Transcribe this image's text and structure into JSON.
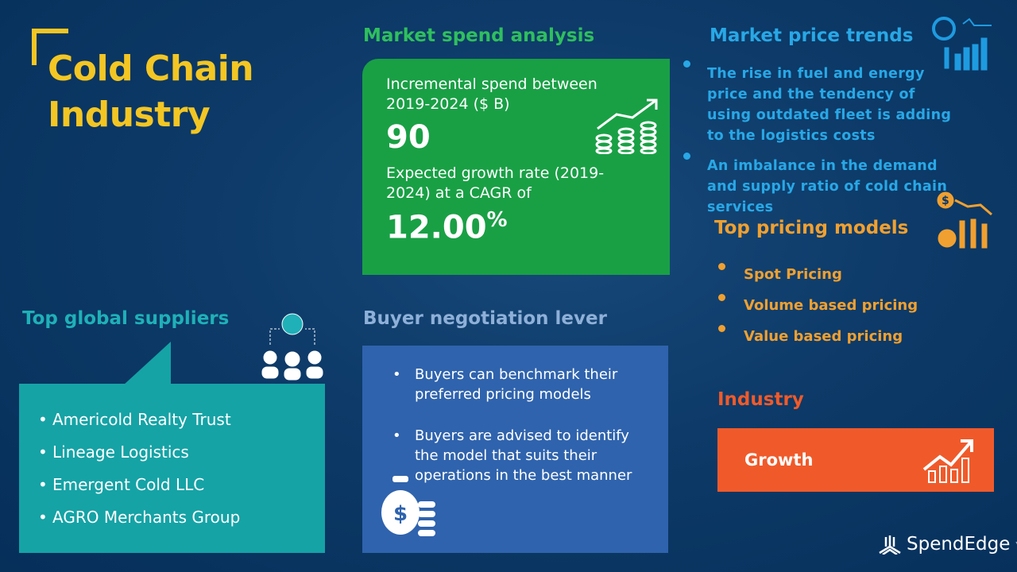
{
  "title": "Cold Chain Industry",
  "market_spend": {
    "heading": "Market spend analysis",
    "incremental_label": "Incremental spend between 2019-2024 ($ B)",
    "incremental_value": "90",
    "growth_label": "Expected growth rate (2019-2024) at a CAGR of",
    "growth_value": "12.00",
    "growth_unit": "%"
  },
  "market_price_trends": {
    "heading": "Market price trends",
    "items": [
      "The rise in fuel and energy price and the tendency of using outdated fleet is adding to the logistics costs",
      "An imbalance in the demand and supply ratio of cold chain services"
    ]
  },
  "top_pricing_models": {
    "heading": "Top pricing models",
    "items": [
      "Spot Pricing",
      "Volume based pricing",
      "Value based pricing"
    ]
  },
  "top_suppliers": {
    "heading": "Top global suppliers",
    "items": [
      "Americold Realty Trust",
      "Lineage Logistics",
      "Emergent Cold LLC",
      "AGRO Merchants Group"
    ]
  },
  "buyer_negotiation": {
    "heading": "Buyer negotiation lever",
    "items": [
      "Buyers can benchmark their preferred pricing models",
      "Buyers are advised to identify the model that suits their operations in the best manner"
    ]
  },
  "industry": {
    "heading": "Industry",
    "status": "Growth"
  },
  "logo": {
    "name": "SpendEdge",
    "tm": "™"
  },
  "colors": {
    "background": "#0d3a68",
    "title": "#f3c623",
    "green": "#19a045",
    "blue": "#28a8e6",
    "orange": "#f0a030",
    "teal": "#15a3a6",
    "slate_box": "#2f63ad",
    "red": "#f05a2a"
  }
}
